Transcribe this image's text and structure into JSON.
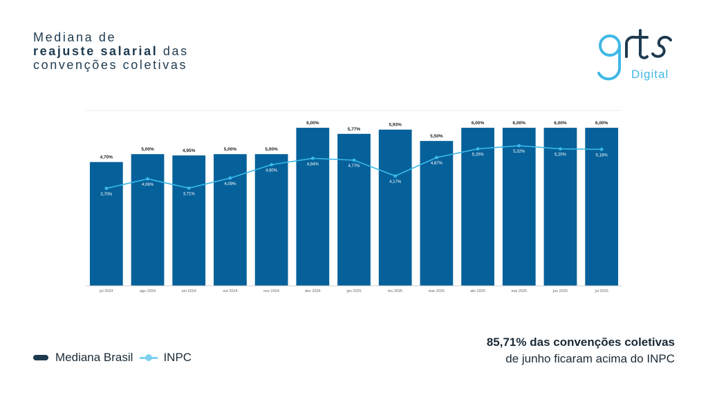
{
  "title": {
    "line1": "Mediana de",
    "line2_bold": "reajuste salarial",
    "line2_rest": " das",
    "line3": "convenções coletivas"
  },
  "logo": {
    "word": "Digital"
  },
  "legend": {
    "bar_label": "Mediana Brasil",
    "line_label": "INPC"
  },
  "note": {
    "bold": "85,71% das convenções coletivas",
    "rest": "de junho ficaram acima do INPC"
  },
  "colors": {
    "bar": "#06619a",
    "line": "#39b9ea",
    "title": "#1e3a4f"
  },
  "chart_data": {
    "type": "bar",
    "categories": [
      "jul 2024",
      "ago 2024",
      "set 2024",
      "out 2024",
      "nov 2024",
      "dez 2024",
      "jan 2025",
      "fev 2025",
      "mar 2025",
      "abr 2025",
      "mai 2025",
      "jun 2025",
      "jul 2025"
    ],
    "series": [
      {
        "name": "Mediana Brasil",
        "type": "bar",
        "values": [
          4.7,
          5.0,
          4.95,
          5.0,
          5.0,
          6.0,
          5.77,
          5.93,
          5.5,
          6.0,
          6.0,
          6.0,
          6.0
        ],
        "labels": [
          "4,70%",
          "5,00%",
          "4,95%",
          "5,00%",
          "5,00%",
          "6,00%",
          "5,77%",
          "5,93%",
          "5,50%",
          "6,00%",
          "6,00%",
          "6,00%",
          "6,00%"
        ]
      },
      {
        "name": "INPC",
        "type": "line",
        "values": [
          3.7,
          4.06,
          3.71,
          4.09,
          4.6,
          4.84,
          4.77,
          4.17,
          4.87,
          5.2,
          5.32,
          5.2,
          5.18
        ],
        "labels": [
          "3,70%",
          "4,06%",
          "3,71%",
          "4,09%",
          "4,60%",
          "4,84%",
          "4,77%",
          "4,17%",
          "4,87%",
          "5,20%",
          "5,32%",
          "5,20%",
          "5,18%"
        ]
      }
    ],
    "ylim": [
      0,
      6.5
    ],
    "grid": false,
    "legend": "bottom-left"
  }
}
